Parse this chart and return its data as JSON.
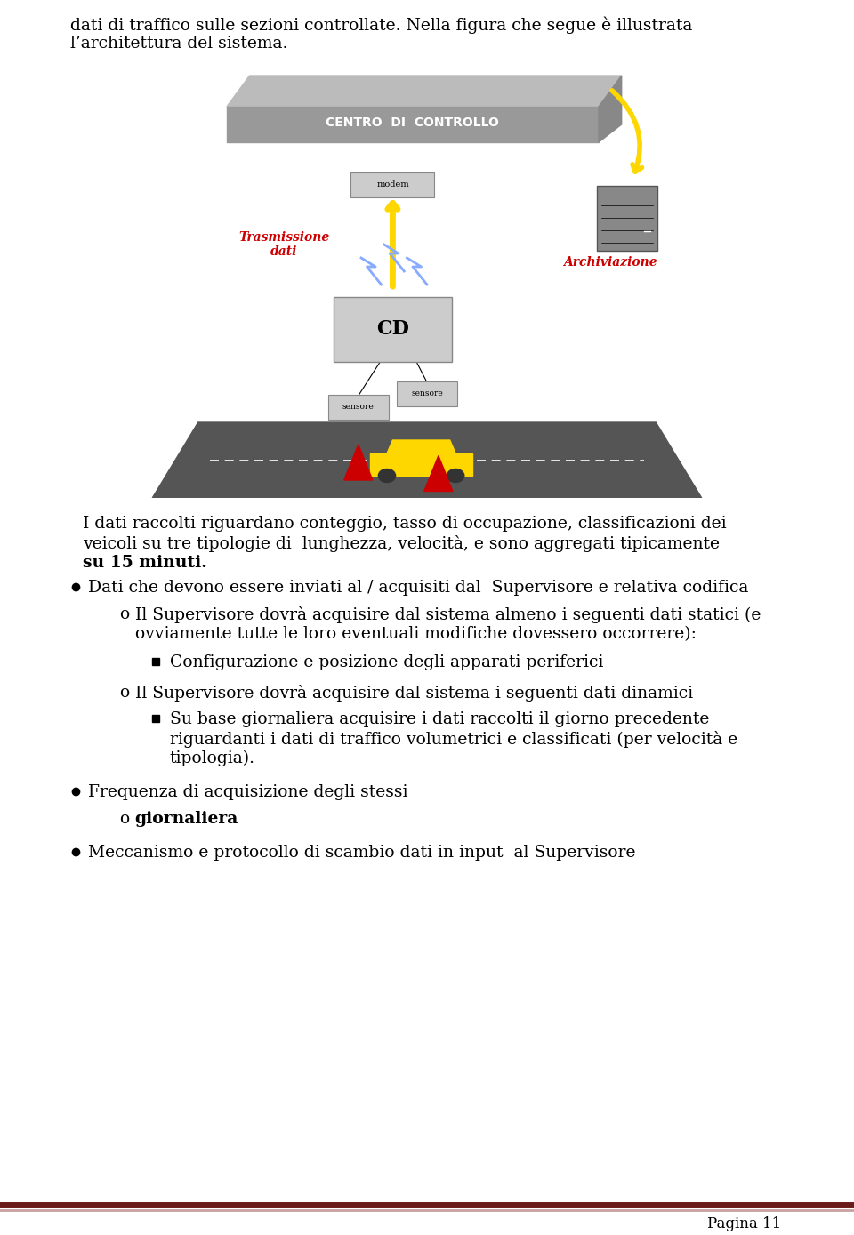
{
  "bg_color": "#ffffff",
  "page_number": "Pagina 11",
  "top_text_line1": "dati di traffico sulle sezioni controllate. Nella figura che segue è illustrata",
  "top_text_line2": "l’architettura del sistema.",
  "para1_l1": "I dati raccolti riguardano conteggio, tasso di occupazione, classificazioni dei",
  "para1_l2": "veicoli su tre tipologie di  lunghezza, velocità, e sono aggregati tipicamente",
  "para1_l3": "su 15 minuti.",
  "bullet1": "Dati che devono essere inviati al / acquisiti dal  Supervisore e relativa codifica",
  "sub1_l1": "Il Supervisore dovrà acquisire dal sistema almeno i seguenti dati statici (e",
  "sub1_l2": "ovviamente tutte le loro eventuali modifiche dovessero occorrere):",
  "subsub1": "Configurazione e posizione degli apparati periferici",
  "sub2": "Il Supervisore dovrà acquisire dal sistema i seguenti dati dinamici",
  "subsub2_l1": "Su base giornaliera acquisire i dati raccolti il giorno precedente",
  "subsub2_l2": "riguardanti i dati di traffico volumetrici e classificati (per velocità e",
  "subsub2_l3": "tipologia).",
  "bullet2": "Frequenza di acquisizione degli stessi",
  "sub3": "giornaliera",
  "bullet3": "Meccanismo e protocollo di scambio dati in input  al Supervisore",
  "footer_dark": "#6b1a1a",
  "footer_light": "#c8a0a0",
  "lm": 0.082,
  "fs": 13.5
}
